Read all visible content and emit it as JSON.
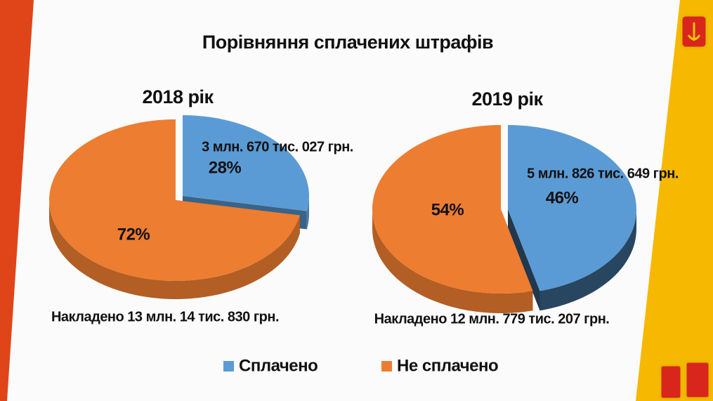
{
  "title": "Порівняння сплачених штрафів",
  "chart_data": [
    {
      "type": "pie",
      "title": "2018 рік",
      "categories": [
        "Сплачено",
        "Не сплачено"
      ],
      "values": [
        28,
        72
      ],
      "value_labels": [
        "28%",
        "72%"
      ],
      "colors": [
        "#5b9bd5",
        "#ed7d31"
      ],
      "paid_amount": "3 млн. 670 тис. 027 грн.",
      "imposed_total": "Накладено 13 млн. 14 тис. 830 грн."
    },
    {
      "type": "pie",
      "title": "2019 рік",
      "categories": [
        "Сплачено",
        "Не сплачено"
      ],
      "values": [
        46,
        54
      ],
      "value_labels": [
        "46%",
        "54%"
      ],
      "colors": [
        "#5b9bd5",
        "#ed7d31"
      ],
      "paid_amount": "5 млн. 826 тис. 649 грн.",
      "imposed_total": "Накладено 12 млн. 779 тис. 207 грн."
    }
  ]
}
